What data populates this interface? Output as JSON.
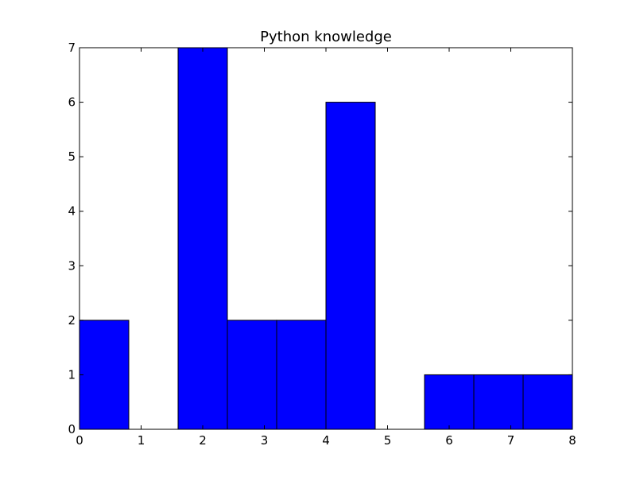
{
  "chart_data": {
    "type": "bar",
    "subtype": "histogram",
    "title": "Python knowledge",
    "xlabel": "",
    "ylabel": "",
    "bin_edges": [
      0,
      0.8,
      1.6,
      2.4,
      3.2,
      4.0,
      4.8,
      5.6,
      6.4,
      7.2,
      8.0
    ],
    "values": [
      2,
      0,
      7,
      2,
      2,
      6,
      0,
      1,
      1,
      1
    ],
    "xlim": [
      0,
      8
    ],
    "ylim": [
      0,
      7
    ],
    "xticks": [
      0,
      1,
      2,
      3,
      4,
      5,
      6,
      7,
      8
    ],
    "yticks": [
      0,
      1,
      2,
      3,
      4,
      5,
      6,
      7
    ],
    "bar_color": "#0000ff",
    "edge_color": "#000000",
    "grid": false,
    "legend": "none"
  }
}
